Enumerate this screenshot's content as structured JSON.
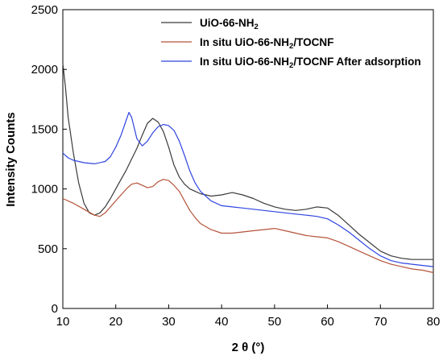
{
  "chart_data": {
    "type": "line",
    "xlabel": "2 θ (°)",
    "ylabel": "Intensity Counts",
    "xlim": [
      10,
      80
    ],
    "ylim": [
      0,
      2500
    ],
    "xticks": [
      10,
      20,
      30,
      40,
      50,
      60,
      70,
      80
    ],
    "yticks": [
      0,
      500,
      1000,
      1500,
      2000,
      2500
    ],
    "legend_position": "top-right",
    "series": [
      {
        "name": "UiO-66-NH2",
        "color": "#3a3a3a",
        "x": [
          10,
          10.5,
          11,
          12,
          13,
          14,
          15,
          16,
          17,
          18,
          19,
          20,
          21,
          22,
          23,
          24,
          25,
          26,
          27,
          28,
          29,
          30,
          31,
          32,
          33,
          34,
          35,
          36,
          38,
          40,
          42,
          44,
          46,
          48,
          50,
          52,
          54,
          56,
          58,
          60,
          62,
          64,
          66,
          68,
          70,
          72,
          74,
          76,
          78,
          80
        ],
        "y": [
          2050,
          1850,
          1600,
          1300,
          1050,
          880,
          800,
          780,
          800,
          850,
          920,
          1000,
          1080,
          1160,
          1250,
          1340,
          1450,
          1550,
          1590,
          1560,
          1480,
          1350,
          1200,
          1100,
          1040,
          1000,
          980,
          960,
          940,
          950,
          970,
          950,
          920,
          880,
          850,
          830,
          820,
          830,
          850,
          840,
          780,
          700,
          620,
          550,
          480,
          440,
          420,
          410,
          410,
          410
        ]
      },
      {
        "name": "In situ UiO-66-NH2/TOCNF",
        "color": "#b5533a",
        "x": [
          10,
          12,
          14,
          16,
          17,
          18,
          19,
          20,
          21,
          22,
          23,
          24,
          25,
          26,
          27,
          28,
          29,
          30,
          31,
          32,
          33,
          34,
          35,
          36,
          38,
          40,
          42,
          44,
          46,
          48,
          50,
          52,
          54,
          56,
          58,
          60,
          62,
          64,
          66,
          68,
          70,
          72,
          74,
          76,
          78,
          80
        ],
        "y": [
          920,
          880,
          830,
          780,
          770,
          800,
          850,
          900,
          950,
          1000,
          1040,
          1050,
          1030,
          1010,
          1020,
          1060,
          1080,
          1070,
          1030,
          980,
          900,
          820,
          760,
          710,
          660,
          630,
          630,
          640,
          650,
          660,
          670,
          650,
          630,
          610,
          600,
          590,
          560,
          520,
          480,
          440,
          400,
          370,
          350,
          330,
          320,
          300
        ]
      },
      {
        "name": "In situ UiO-66-NH2/TOCNF After adsorption",
        "color": "#2f45e0",
        "x": [
          10,
          11,
          12,
          14,
          16,
          18,
          19,
          20,
          21,
          22,
          22.5,
          23,
          24,
          25,
          26,
          27,
          28,
          29,
          30,
          31,
          32,
          33,
          34,
          35,
          36,
          38,
          40,
          42,
          44,
          46,
          48,
          50,
          52,
          54,
          56,
          58,
          60,
          62,
          64,
          66,
          68,
          70,
          72,
          74,
          76,
          78,
          80
        ],
        "y": [
          1300,
          1260,
          1240,
          1220,
          1210,
          1230,
          1270,
          1350,
          1450,
          1580,
          1640,
          1600,
          1420,
          1360,
          1400,
          1470,
          1520,
          1540,
          1530,
          1490,
          1400,
          1280,
          1150,
          1050,
          980,
          900,
          860,
          850,
          840,
          830,
          820,
          810,
          800,
          790,
          780,
          770,
          750,
          700,
          640,
          570,
          500,
          440,
          400,
          380,
          370,
          360,
          350
        ]
      }
    ]
  },
  "legend": {
    "entry1": {
      "main": "UiO-66-NH",
      "sub": "2",
      "tail": ""
    },
    "entry2": {
      "main": "In situ UiO-66-NH",
      "sub": "2",
      "tail": "/TOCNF"
    },
    "entry3": {
      "main": "In situ UiO-66-NH",
      "sub": "2",
      "tail": "/TOCNF After adsorption"
    }
  }
}
